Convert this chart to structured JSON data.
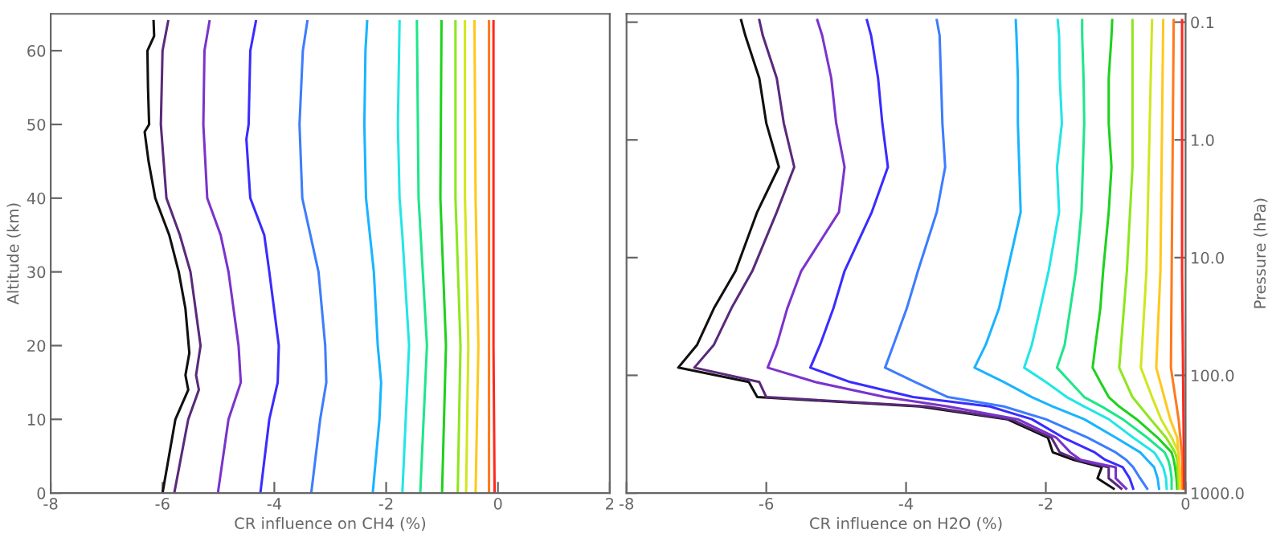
{
  "chart_data": [
    {
      "type": "line",
      "xlabel": "CR influence on CH4 (%)",
      "ylabel": "Altitude (km)",
      "xlim": [
        -8,
        2
      ],
      "xticks": [
        -8,
        -6,
        -4,
        -2,
        0,
        2
      ],
      "ylim": [
        0,
        65
      ],
      "yticks": [
        0,
        10,
        20,
        30,
        40,
        50,
        60
      ],
      "grid": false,
      "legend": false,
      "marker": "none",
      "line_style": "solid",
      "series": [
        {
          "color": "#101010",
          "x": [
            -6.0,
            -5.77,
            -5.54,
            -5.59,
            -5.52,
            -5.59,
            -5.71,
            -5.88,
            -6.13,
            -6.25,
            -6.32,
            -6.24,
            -6.26,
            -6.27,
            -6.15,
            -6.16
          ],
          "values": [
            0,
            10,
            14,
            16,
            19,
            25,
            30,
            35,
            40,
            45,
            49,
            50,
            55,
            60,
            62,
            64
          ]
        },
        {
          "color": "#5a2a7a",
          "x": [
            -5.79,
            -5.54,
            -5.35,
            -5.4,
            -5.32,
            -5.5,
            -5.69,
            -5.93,
            -6.03,
            -6.0,
            -5.9
          ],
          "values": [
            0,
            10,
            14,
            16,
            20,
            30,
            35,
            40,
            50,
            60,
            64
          ]
        },
        {
          "color": "#7b33cc",
          "x": [
            -5.01,
            -4.82,
            -4.6,
            -4.64,
            -4.82,
            -4.96,
            -5.2,
            -5.27,
            -5.25,
            -5.16
          ],
          "values": [
            0,
            10,
            15,
            20,
            30,
            35,
            40,
            50,
            60,
            64
          ]
        },
        {
          "color": "#3a2cff",
          "x": [
            -4.25,
            -4.09,
            -3.94,
            -3.92,
            -4.09,
            -4.18,
            -4.43,
            -4.5,
            -4.46,
            -4.43,
            -4.33
          ],
          "values": [
            0,
            10,
            15,
            20,
            30,
            35,
            40,
            48,
            50,
            60,
            64
          ]
        },
        {
          "color": "#3d7dff",
          "x": [
            -3.34,
            -3.18,
            -3.07,
            -3.09,
            -3.21,
            -3.5,
            -3.55,
            -3.49,
            -3.41
          ],
          "values": [
            0,
            10,
            15,
            20,
            30,
            40,
            50,
            60,
            64
          ]
        },
        {
          "color": "#19b4ff",
          "x": [
            -2.24,
            -2.12,
            -2.09,
            -2.15,
            -2.22,
            -2.36,
            -2.39,
            -2.37,
            -2.34
          ],
          "values": [
            0,
            10,
            15,
            20,
            30,
            40,
            50,
            60,
            64
          ]
        },
        {
          "color": "#22e6e6",
          "x": [
            -1.71,
            -1.59,
            -1.71,
            -1.76,
            -1.79,
            -1.76
          ],
          "values": [
            0,
            20,
            35,
            40,
            50,
            64
          ]
        },
        {
          "color": "#1ee68a",
          "x": [
            -1.39,
            -1.27,
            -1.42,
            -1.45
          ],
          "values": [
            0,
            20,
            40,
            64
          ]
        },
        {
          "color": "#1ed21e",
          "x": [
            -1.0,
            -0.93,
            -1.03,
            -1.01
          ],
          "values": [
            0,
            20,
            40,
            64
          ]
        },
        {
          "color": "#8ee61e",
          "x": [
            -0.72,
            -0.67,
            -0.76,
            -0.76
          ],
          "values": [
            0,
            20,
            40,
            64
          ]
        },
        {
          "color": "#d2e61e",
          "x": [
            -0.57,
            -0.53,
            -0.59,
            -0.59
          ],
          "values": [
            0,
            20,
            40,
            64
          ]
        },
        {
          "color": "#ffc81e",
          "x": [
            -0.4,
            -0.35,
            -0.4,
            -0.42
          ],
          "values": [
            0,
            20,
            40,
            64
          ]
        },
        {
          "color": "#ff7a1e",
          "x": [
            -0.16,
            -0.16,
            -0.16,
            -0.16
          ],
          "values": [
            0,
            20,
            40,
            64
          ]
        },
        {
          "color": "#ff2a1e",
          "x": [
            -0.06,
            -0.08,
            -0.08
          ],
          "values": [
            0,
            20,
            64
          ]
        }
      ]
    },
    {
      "type": "line",
      "xlabel": "CR influence on H2O (%)",
      "y2label": "Pressure (hPa)",
      "xlim": [
        -8,
        0
      ],
      "xticks": [
        -8,
        -6,
        -4,
        -2,
        0
      ],
      "log": "y2",
      "y2lim": [
        1000,
        0.085
      ],
      "y2ticks": [
        {
          "value": 1000,
          "label": "1000.0"
        },
        {
          "value": 100,
          "label": "100.0"
        },
        {
          "value": 10,
          "label": "10.0"
        },
        {
          "value": 1,
          "label": "1.0"
        },
        {
          "value": 0.1,
          "label": "0.1"
        }
      ],
      "grid": false,
      "legend": false,
      "marker": "none",
      "line_style": "solid",
      "series": [
        {
          "axis": "y2",
          "color": "#101010",
          "x": [
            -1.03,
            -1.26,
            -1.2,
            -1.6,
            -1.9,
            -1.97,
            -2.55,
            -3.8,
            -6.13,
            -6.25,
            -7.26,
            -6.99,
            -6.75,
            -6.44,
            -6.13,
            -5.82,
            -6.0,
            -6.1,
            -6.3,
            -6.36
          ],
          "values": [
            917,
            749,
            603,
            522,
            451,
            338,
            236,
            184,
            153,
            114,
            86,
            55,
            27,
            13,
            4.1,
            1.7,
            0.72,
            0.3,
            0.13,
            0.096
          ]
        },
        {
          "axis": "y2",
          "color": "#5a2a7a",
          "x": [
            -0.92,
            -1.1,
            -1.1,
            -1.55,
            -1.8,
            -1.92,
            -2.5,
            -3.7,
            -6.0,
            -6.1,
            -7.03,
            -6.75,
            -6.5,
            -6.2,
            -5.85,
            -5.6,
            -5.75,
            -5.85,
            -6.05,
            -6.1
          ],
          "values": [
            917,
            749,
            603,
            522,
            451,
            338,
            236,
            184,
            153,
            114,
            86,
            55,
            27,
            13,
            4.1,
            1.7,
            0.72,
            0.3,
            0.13,
            0.096
          ]
        },
        {
          "axis": "y2",
          "color": "#7b33cc",
          "x": [
            -0.85,
            -1.0,
            -1.0,
            -1.5,
            -1.65,
            -1.85,
            -2.4,
            -3.4,
            -4.3,
            -5.3,
            -5.98,
            -5.85,
            -5.7,
            -5.5,
            -4.96,
            -4.88,
            -5.0,
            -5.07,
            -5.2,
            -5.27
          ],
          "values": [
            917,
            749,
            603,
            522,
            451,
            338,
            236,
            184,
            153,
            114,
            86,
            55,
            27,
            13,
            4.1,
            1.7,
            0.72,
            0.3,
            0.13,
            0.096
          ]
        },
        {
          "axis": "y2",
          "color": "#3a2cff",
          "x": [
            -0.75,
            -0.8,
            -0.9,
            -1.15,
            -1.3,
            -1.75,
            -2.2,
            -2.8,
            -3.9,
            -4.8,
            -5.37,
            -5.23,
            -5.04,
            -4.88,
            -4.49,
            -4.26,
            -4.34,
            -4.4,
            -4.5,
            -4.56
          ],
          "values": [
            917,
            749,
            603,
            522,
            451,
            338,
            236,
            184,
            153,
            114,
            86,
            55,
            27,
            13,
            4.1,
            1.7,
            0.72,
            0.3,
            0.13,
            0.096
          ]
        },
        {
          "axis": "y2",
          "color": "#3d7dff",
          "x": [
            -0.55,
            -0.65,
            -0.75,
            -0.85,
            -1.0,
            -1.4,
            -2.0,
            -2.6,
            -3.4,
            -3.87,
            -4.3,
            -4.18,
            -3.99,
            -3.83,
            -3.56,
            -3.44,
            -3.48,
            -3.5,
            -3.52,
            -3.56
          ],
          "values": [
            917,
            749,
            603,
            522,
            451,
            338,
            236,
            184,
            153,
            114,
            86,
            55,
            27,
            13,
            4.1,
            1.7,
            0.72,
            0.3,
            0.13,
            0.096
          ]
        },
        {
          "axis": "y2",
          "color": "#19b4ff",
          "x": [
            -0.38,
            -0.4,
            -0.45,
            -0.55,
            -0.65,
            -1.0,
            -1.45,
            -1.9,
            -2.2,
            -2.6,
            -3.02,
            -2.86,
            -2.67,
            -2.55,
            -2.36,
            -2.38,
            -2.4,
            -2.4,
            -2.42,
            -2.43
          ],
          "values": [
            917,
            749,
            603,
            522,
            451,
            338,
            236,
            184,
            153,
            114,
            86,
            55,
            27,
            13,
            4.1,
            1.7,
            0.72,
            0.3,
            0.13,
            0.096
          ]
        },
        {
          "axis": "y2",
          "color": "#22e6e6",
          "x": [
            -0.27,
            -0.28,
            -0.32,
            -0.38,
            -0.45,
            -0.75,
            -1.1,
            -1.45,
            -1.7,
            -2.0,
            -2.31,
            -2.2,
            -2.08,
            -1.96,
            -1.81,
            -1.84,
            -1.77,
            -1.8,
            -1.81,
            -1.83
          ],
          "values": [
            917,
            749,
            603,
            522,
            451,
            338,
            236,
            184,
            153,
            114,
            86,
            55,
            27,
            13,
            4.1,
            1.7,
            0.72,
            0.3,
            0.13,
            0.096
          ]
        },
        {
          "axis": "y2",
          "color": "#1ee68a",
          "x": [
            -0.2,
            -0.2,
            -0.22,
            -0.25,
            -0.3,
            -0.55,
            -0.9,
            -1.2,
            -1.45,
            -1.65,
            -1.84,
            -1.73,
            -1.65,
            -1.57,
            -1.49,
            -1.47,
            -1.45,
            -1.46,
            -1.48,
            -1.48
          ],
          "values": [
            917,
            749,
            603,
            522,
            451,
            338,
            236,
            184,
            153,
            114,
            86,
            55,
            27,
            13,
            4.1,
            1.7,
            0.72,
            0.3,
            0.13,
            0.096
          ]
        },
        {
          "axis": "y2",
          "color": "#1ed21e",
          "x": [
            -0.12,
            -0.13,
            -0.15,
            -0.17,
            -0.2,
            -0.4,
            -0.7,
            -0.95,
            -1.1,
            -1.22,
            -1.33,
            -1.29,
            -1.22,
            -1.18,
            -1.1,
            -1.06,
            -1.1,
            -1.1,
            -1.06,
            -1.05
          ],
          "values": [
            917,
            749,
            603,
            522,
            451,
            338,
            236,
            184,
            153,
            114,
            86,
            55,
            27,
            13,
            4.1,
            1.7,
            0.72,
            0.3,
            0.13,
            0.096
          ]
        },
        {
          "axis": "y2",
          "color": "#8ee61e",
          "x": [
            -0.1,
            -0.12,
            -0.15,
            -0.28,
            -0.5,
            -0.65,
            -0.76,
            -0.95,
            -0.84,
            -0.76,
            -0.76
          ],
          "values": [
            917,
            522,
            451,
            338,
            236,
            184,
            153,
            86,
            13,
            1.7,
            0.096
          ]
        },
        {
          "axis": "y2",
          "color": "#d2e61e",
          "x": [
            -0.08,
            -0.1,
            -0.2,
            -0.35,
            -0.48,
            -0.64,
            -0.56,
            -0.48
          ],
          "values": [
            917,
            451,
            338,
            236,
            153,
            86,
            13,
            0.096
          ]
        },
        {
          "axis": "y2",
          "color": "#ffc81e",
          "x": [
            -0.06,
            -0.12,
            -0.22,
            -0.42,
            -0.36,
            -0.32
          ],
          "values": [
            917,
            338,
            236,
            86,
            13,
            0.096
          ]
        },
        {
          "axis": "y2",
          "color": "#ff7a1e",
          "x": [
            -0.04,
            -0.05,
            -0.1,
            -0.21,
            -0.17
          ],
          "values": [
            917,
            485,
            236,
            86,
            0.096
          ]
        },
        {
          "axis": "y2",
          "color": "#ff2a1e",
          "x": [
            -0.02,
            -0.03,
            -0.05,
            -0.05
          ],
          "values": [
            917,
            236,
            13,
            0.096
          ]
        }
      ]
    }
  ]
}
